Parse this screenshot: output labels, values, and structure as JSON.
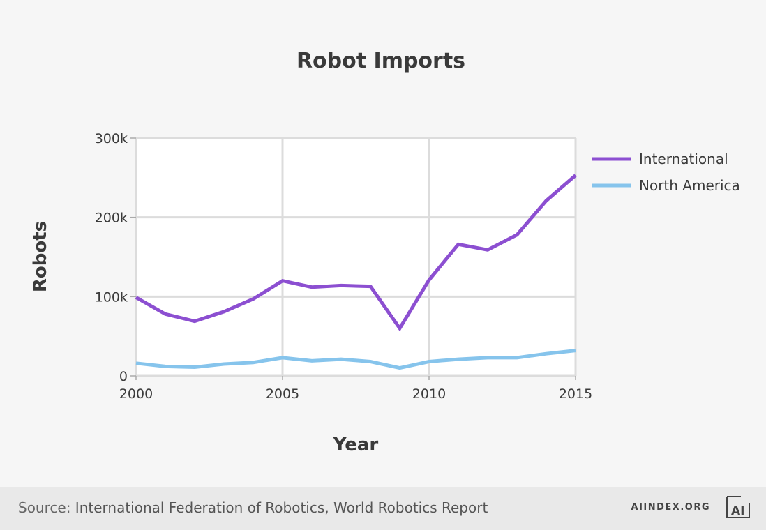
{
  "chart_data": {
    "type": "line",
    "title": "Robot Imports",
    "xlabel": "Year",
    "ylabel": "Robots",
    "x": [
      2000,
      2001,
      2002,
      2003,
      2004,
      2005,
      2006,
      2007,
      2008,
      2009,
      2010,
      2011,
      2012,
      2013,
      2014,
      2015
    ],
    "series": [
      {
        "name": "International",
        "color": "#8c4fd1",
        "values": [
          99000,
          78000,
          69000,
          81000,
          97000,
          120000,
          112000,
          114000,
          113000,
          60000,
          121000,
          166000,
          159000,
          178000,
          221000,
          253000
        ]
      },
      {
        "name": "North America",
        "color": "#86c4ec",
        "values": [
          16000,
          12000,
          11000,
          15000,
          17000,
          23000,
          19000,
          21000,
          18000,
          10000,
          18000,
          21000,
          23000,
          23000,
          28000,
          32000
        ]
      }
    ],
    "xlim": [
      2000,
      2015
    ],
    "ylim": [
      0,
      300000
    ],
    "xticks": [
      2000,
      2005,
      2010,
      2015
    ],
    "xtick_labels": [
      "2000",
      "2005",
      "2010",
      "2015"
    ],
    "yticks": [
      0,
      100000,
      200000,
      300000
    ],
    "ytick_labels": [
      "0",
      "100k",
      "200k",
      "300k"
    ],
    "grid": true,
    "legend": "right"
  },
  "footer": {
    "source_label": "Source:",
    "source_text": "International Federation of Robotics, World Robotics Report",
    "brand": "AIINDEX.ORG",
    "logo_text": "AI"
  }
}
